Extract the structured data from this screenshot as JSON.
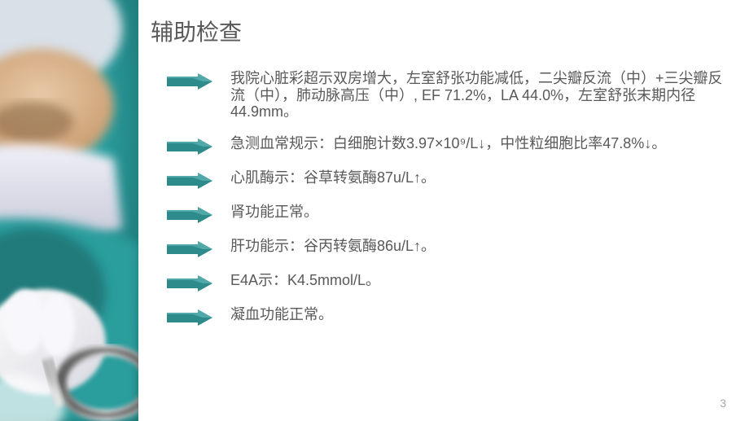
{
  "title": "辅助检查",
  "items": [
    "我院心脏彩超示双房增大，左室舒张功能减低，二尖瓣反流（中）+三尖瓣反流（中），肺动脉高压（中）, EF 71.2%，LA 44.0%，左室舒张末期内径44.9mm。",
    "急测血常规示：白细胞计数3.97×10⁹/L↓，中性粒细胞比率47.8%↓。",
    "心肌酶示：谷草转氨酶87u/L↑。",
    "肾功能正常。",
    "肝功能示：谷丙转氨酶86u/L↑。",
    "E4A示：K4.5mmol/L。",
    "凝血功能正常。"
  ],
  "page_number": "3",
  "arrow_color": "#2e8b8b",
  "arrow_highlight": "#5fb5b5",
  "text_color": "#595959",
  "image_colors": {
    "scrub_teal": "#2a9d9d",
    "scrub_teal_light": "#6bc4c4",
    "skin": "#d4a574",
    "skin_light": "#e8c9a8",
    "mask": "#e8e8f0",
    "mask_shadow": "#c8c8d8",
    "cap": "#d8e0e8",
    "glove": "#f0f0f5",
    "metal": "#9a9a9a",
    "metal_light": "#d0d0d0",
    "shadow": "#1a5555"
  }
}
